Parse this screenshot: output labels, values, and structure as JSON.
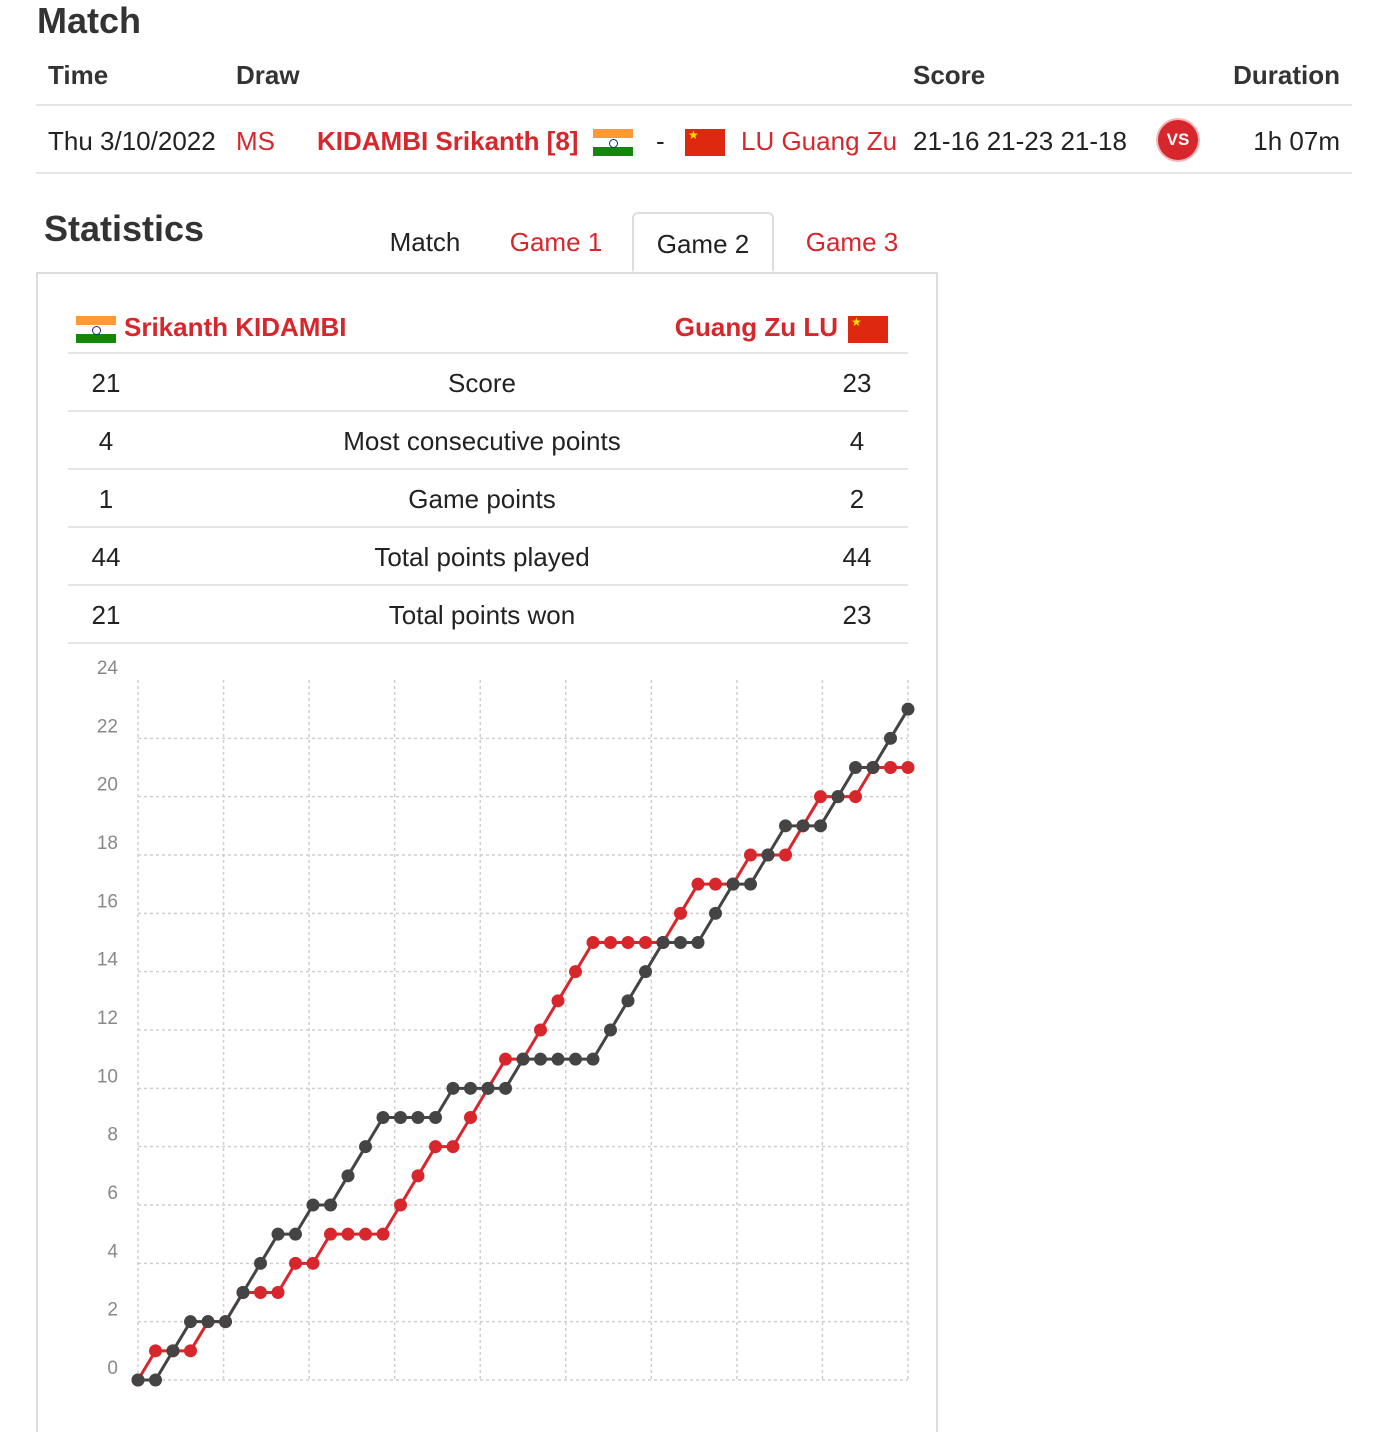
{
  "match_section": {
    "title": "Match",
    "headers": {
      "time": "Time",
      "draw": "Draw",
      "score": "Score",
      "duration": "Duration"
    },
    "row": {
      "time": "Thu 3/10/2022",
      "draw": "MS",
      "player1": "KIDAMBI Srikanth [8]",
      "separator": "-",
      "player2": "LU Guang Zu",
      "score": "21-16 21-23 21-18",
      "vs_badge": "VS",
      "duration": "1h 07m"
    }
  },
  "statistics": {
    "title": "Statistics",
    "tabs": [
      {
        "label": "Match",
        "active": false
      },
      {
        "label": "Game 1",
        "active": false
      },
      {
        "label": "Game 2",
        "active": true
      },
      {
        "label": "Game 3",
        "active": false
      }
    ],
    "player1_name": "Srikanth KIDAMBI",
    "player2_name": "Guang Zu LU",
    "rows": [
      {
        "left": "21",
        "label": "Score",
        "right": "23"
      },
      {
        "left": "4",
        "label": "Most consecutive points",
        "right": "4"
      },
      {
        "left": "1",
        "label": "Game points",
        "right": "2"
      },
      {
        "left": "44",
        "label": "Total points played",
        "right": "44"
      },
      {
        "left": "21",
        "label": "Total points won",
        "right": "23"
      }
    ]
  },
  "colors": {
    "accent_red": "#d7262c",
    "dark_series": "#444444"
  },
  "chart_data": {
    "type": "line",
    "x": [
      0,
      1,
      2,
      3,
      4,
      5,
      6,
      7,
      8,
      9,
      10,
      11,
      12,
      13,
      14,
      15,
      16,
      17,
      18,
      19,
      20,
      21,
      22,
      23,
      24,
      25,
      26,
      27,
      28,
      29,
      30,
      31,
      32,
      33,
      34,
      35,
      36,
      37,
      38,
      39,
      40,
      41,
      42,
      43,
      44
    ],
    "ylim": [
      0,
      24
    ],
    "yticks": [
      0,
      2,
      4,
      6,
      8,
      10,
      12,
      14,
      16,
      18,
      20,
      22,
      24
    ],
    "grid": true,
    "series": [
      {
        "color": "#d7262c",
        "values": [
          0,
          1,
          1,
          1,
          2,
          2,
          3,
          3,
          3,
          4,
          4,
          5,
          5,
          5,
          5,
          6,
          7,
          8,
          8,
          9,
          10,
          11,
          11,
          12,
          13,
          14,
          15,
          15,
          15,
          15,
          15,
          16,
          17,
          17,
          17,
          18,
          18,
          18,
          19,
          20,
          20,
          20,
          21,
          21,
          21
        ]
      },
      {
        "color": "#444444",
        "values": [
          0,
          0,
          1,
          2,
          2,
          2,
          3,
          4,
          5,
          5,
          6,
          6,
          7,
          8,
          9,
          9,
          9,
          9,
          10,
          10,
          10,
          10,
          11,
          11,
          11,
          11,
          11,
          12,
          13,
          14,
          15,
          15,
          15,
          16,
          17,
          17,
          18,
          19,
          19,
          19,
          20,
          21,
          21,
          22,
          23
        ]
      }
    ]
  }
}
